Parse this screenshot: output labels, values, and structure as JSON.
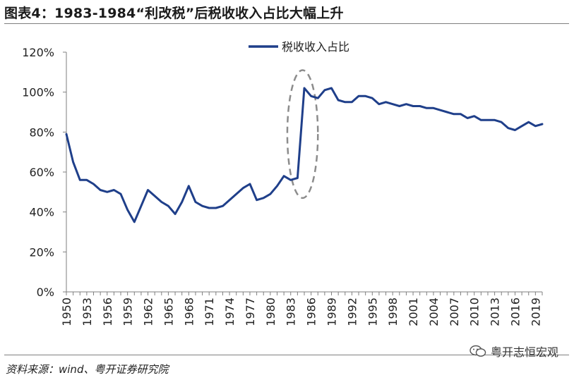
{
  "title": "图表4：1983-1984“利改税”后税收收入占比大幅上升",
  "source": "资料来源：wind、粤开证券研究院",
  "watermark": "粤开志恒宏观",
  "chart_data": {
    "type": "line",
    "title": "",
    "xlabel": "",
    "ylabel": "",
    "ylim": [
      0,
      1.2
    ],
    "xlim": [
      1950,
      2020
    ],
    "y_ticks": [
      "0%",
      "20%",
      "40%",
      "60%",
      "80%",
      "100%",
      "120%"
    ],
    "y_tick_values": [
      0,
      0.2,
      0.4,
      0.6,
      0.8,
      1.0,
      1.2
    ],
    "x_ticks": [
      "1950",
      "1953",
      "1956",
      "1959",
      "1962",
      "1965",
      "1968",
      "1971",
      "1974",
      "1977",
      "1980",
      "1983",
      "1986",
      "1989",
      "1992",
      "1995",
      "1998",
      "2001",
      "2004",
      "2007",
      "2010",
      "2013",
      "2016",
      "2019"
    ],
    "grid": false,
    "legend_position": "top-center",
    "series": [
      {
        "name": "税收收入占比",
        "color": "#1f3f8a",
        "x": [
          1950,
          1951,
          1952,
          1953,
          1954,
          1955,
          1956,
          1957,
          1958,
          1959,
          1960,
          1961,
          1962,
          1963,
          1964,
          1965,
          1966,
          1967,
          1968,
          1969,
          1970,
          1971,
          1972,
          1973,
          1974,
          1975,
          1976,
          1977,
          1978,
          1979,
          1980,
          1981,
          1982,
          1983,
          1984,
          1985,
          1986,
          1987,
          1988,
          1989,
          1990,
          1991,
          1992,
          1993,
          1994,
          1995,
          1996,
          1997,
          1998,
          1999,
          2000,
          2001,
          2002,
          2003,
          2004,
          2005,
          2006,
          2007,
          2008,
          2009,
          2010,
          2011,
          2012,
          2013,
          2014,
          2015,
          2016,
          2017,
          2018,
          2019,
          2020
        ],
        "values": [
          0.79,
          0.65,
          0.56,
          0.56,
          0.54,
          0.51,
          0.5,
          0.51,
          0.49,
          0.41,
          0.35,
          0.43,
          0.51,
          0.48,
          0.45,
          0.43,
          0.39,
          0.45,
          0.53,
          0.45,
          0.43,
          0.42,
          0.42,
          0.43,
          0.46,
          0.49,
          0.52,
          0.54,
          0.46,
          0.47,
          0.49,
          0.53,
          0.58,
          0.56,
          0.57,
          1.02,
          0.98,
          0.97,
          1.01,
          1.02,
          0.96,
          0.95,
          0.95,
          0.98,
          0.98,
          0.97,
          0.94,
          0.95,
          0.94,
          0.93,
          0.94,
          0.93,
          0.93,
          0.92,
          0.92,
          0.91,
          0.9,
          0.89,
          0.89,
          0.87,
          0.88,
          0.86,
          0.86,
          0.86,
          0.85,
          0.82,
          0.81,
          0.83,
          0.85,
          0.83,
          0.84
        ]
      }
    ],
    "annotations": [
      {
        "type": "dashed-ellipse",
        "color": "#8c8c8c",
        "x_range": [
          1982.5,
          1987
        ],
        "y_range": [
          0.47,
          1.11
        ]
      }
    ]
  }
}
